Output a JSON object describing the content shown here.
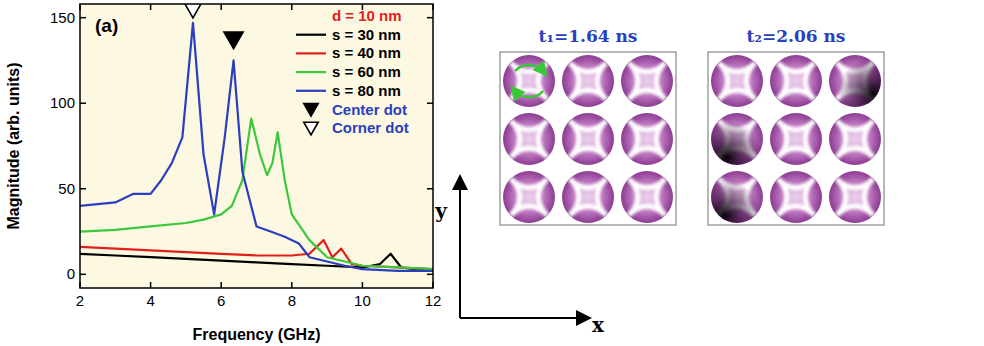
{
  "chart_data": {
    "type": "line",
    "x_label": "Frequency (GHz)",
    "y_label": "Magnitude (arb. units)",
    "annotations": [
      {
        "text": "(a)"
      },
      {
        "text": "d = 10 nm",
        "color": "#e0201b"
      }
    ],
    "xlim": [
      2,
      12
    ],
    "ylim": [
      -8,
      158
    ],
    "xticks": [
      2,
      4,
      6,
      8,
      10,
      12
    ],
    "yticks": [
      0,
      50,
      100,
      150
    ],
    "legend": "top-right",
    "series": [
      {
        "name": "s = 30 nm",
        "color": "#000000",
        "x": [
          2,
          3,
          4,
          5,
          6,
          7,
          8,
          9,
          10,
          10.5,
          10.8,
          11.1,
          11.5,
          12
        ],
        "values": [
          12,
          11,
          10,
          9,
          8,
          7,
          6,
          5,
          4,
          6,
          12,
          4,
          3,
          2
        ]
      },
      {
        "name": "s = 40 nm",
        "color": "#e0201b",
        "x": [
          2,
          3,
          4,
          5,
          6,
          7,
          8,
          8.5,
          8.9,
          9.15,
          9.4,
          9.7,
          10,
          11,
          12
        ],
        "values": [
          16,
          15,
          14,
          13,
          12,
          11,
          11,
          12,
          20,
          10,
          15,
          6,
          5,
          4,
          3
        ]
      },
      {
        "name": "s = 60 nm",
        "color": "#3cc83c",
        "x": [
          2,
          3,
          4,
          5,
          5.5,
          6,
          6.3,
          6.6,
          6.85,
          7.1,
          7.3,
          7.45,
          7.6,
          7.8,
          8,
          8.5,
          9,
          10,
          11,
          12
        ],
        "values": [
          25,
          26,
          28,
          30,
          32,
          35,
          40,
          55,
          91,
          70,
          58,
          65,
          83,
          55,
          35,
          20,
          10,
          5,
          4,
          3
        ]
      },
      {
        "name": "s = 80 nm",
        "color": "#2a3fbf",
        "x": [
          2,
          2.5,
          3,
          3.5,
          4,
          4.3,
          4.6,
          4.9,
          5.2,
          5.5,
          5.8,
          6.1,
          6.35,
          6.6,
          7,
          7.4,
          7.8,
          8.2,
          8.5,
          9.5,
          10,
          11,
          12
        ],
        "values": [
          40,
          41,
          42,
          47,
          47,
          55,
          65,
          80,
          147,
          70,
          35,
          80,
          125,
          60,
          28,
          25,
          22,
          18,
          10,
          5,
          3,
          2,
          2
        ]
      }
    ],
    "peak_markers": [
      {
        "name": "Center dot",
        "x": 6.35,
        "y": 137,
        "marker": "triangle-down",
        "color": "#2a3fbf"
      },
      {
        "name": "Corner dot",
        "x": 5.2,
        "y": 155,
        "marker": "triangle-down-open",
        "color": "#2a3fbf"
      }
    ]
  },
  "panels": [
    {
      "title": "t₁=1.64 ns"
    },
    {
      "title": "t₂=2.06 ns"
    }
  ],
  "axes": {
    "x": "x",
    "y": "y"
  }
}
